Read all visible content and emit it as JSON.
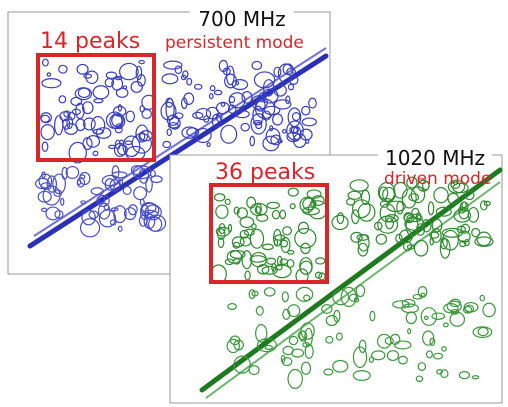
{
  "panels": [
    {
      "title": "700 MHz",
      "peaks": "14 peaks",
      "mode": "persistent mode"
    },
    {
      "title": "1020 MHz",
      "peaks": "36 peaks",
      "mode": "driven mode"
    }
  ]
}
